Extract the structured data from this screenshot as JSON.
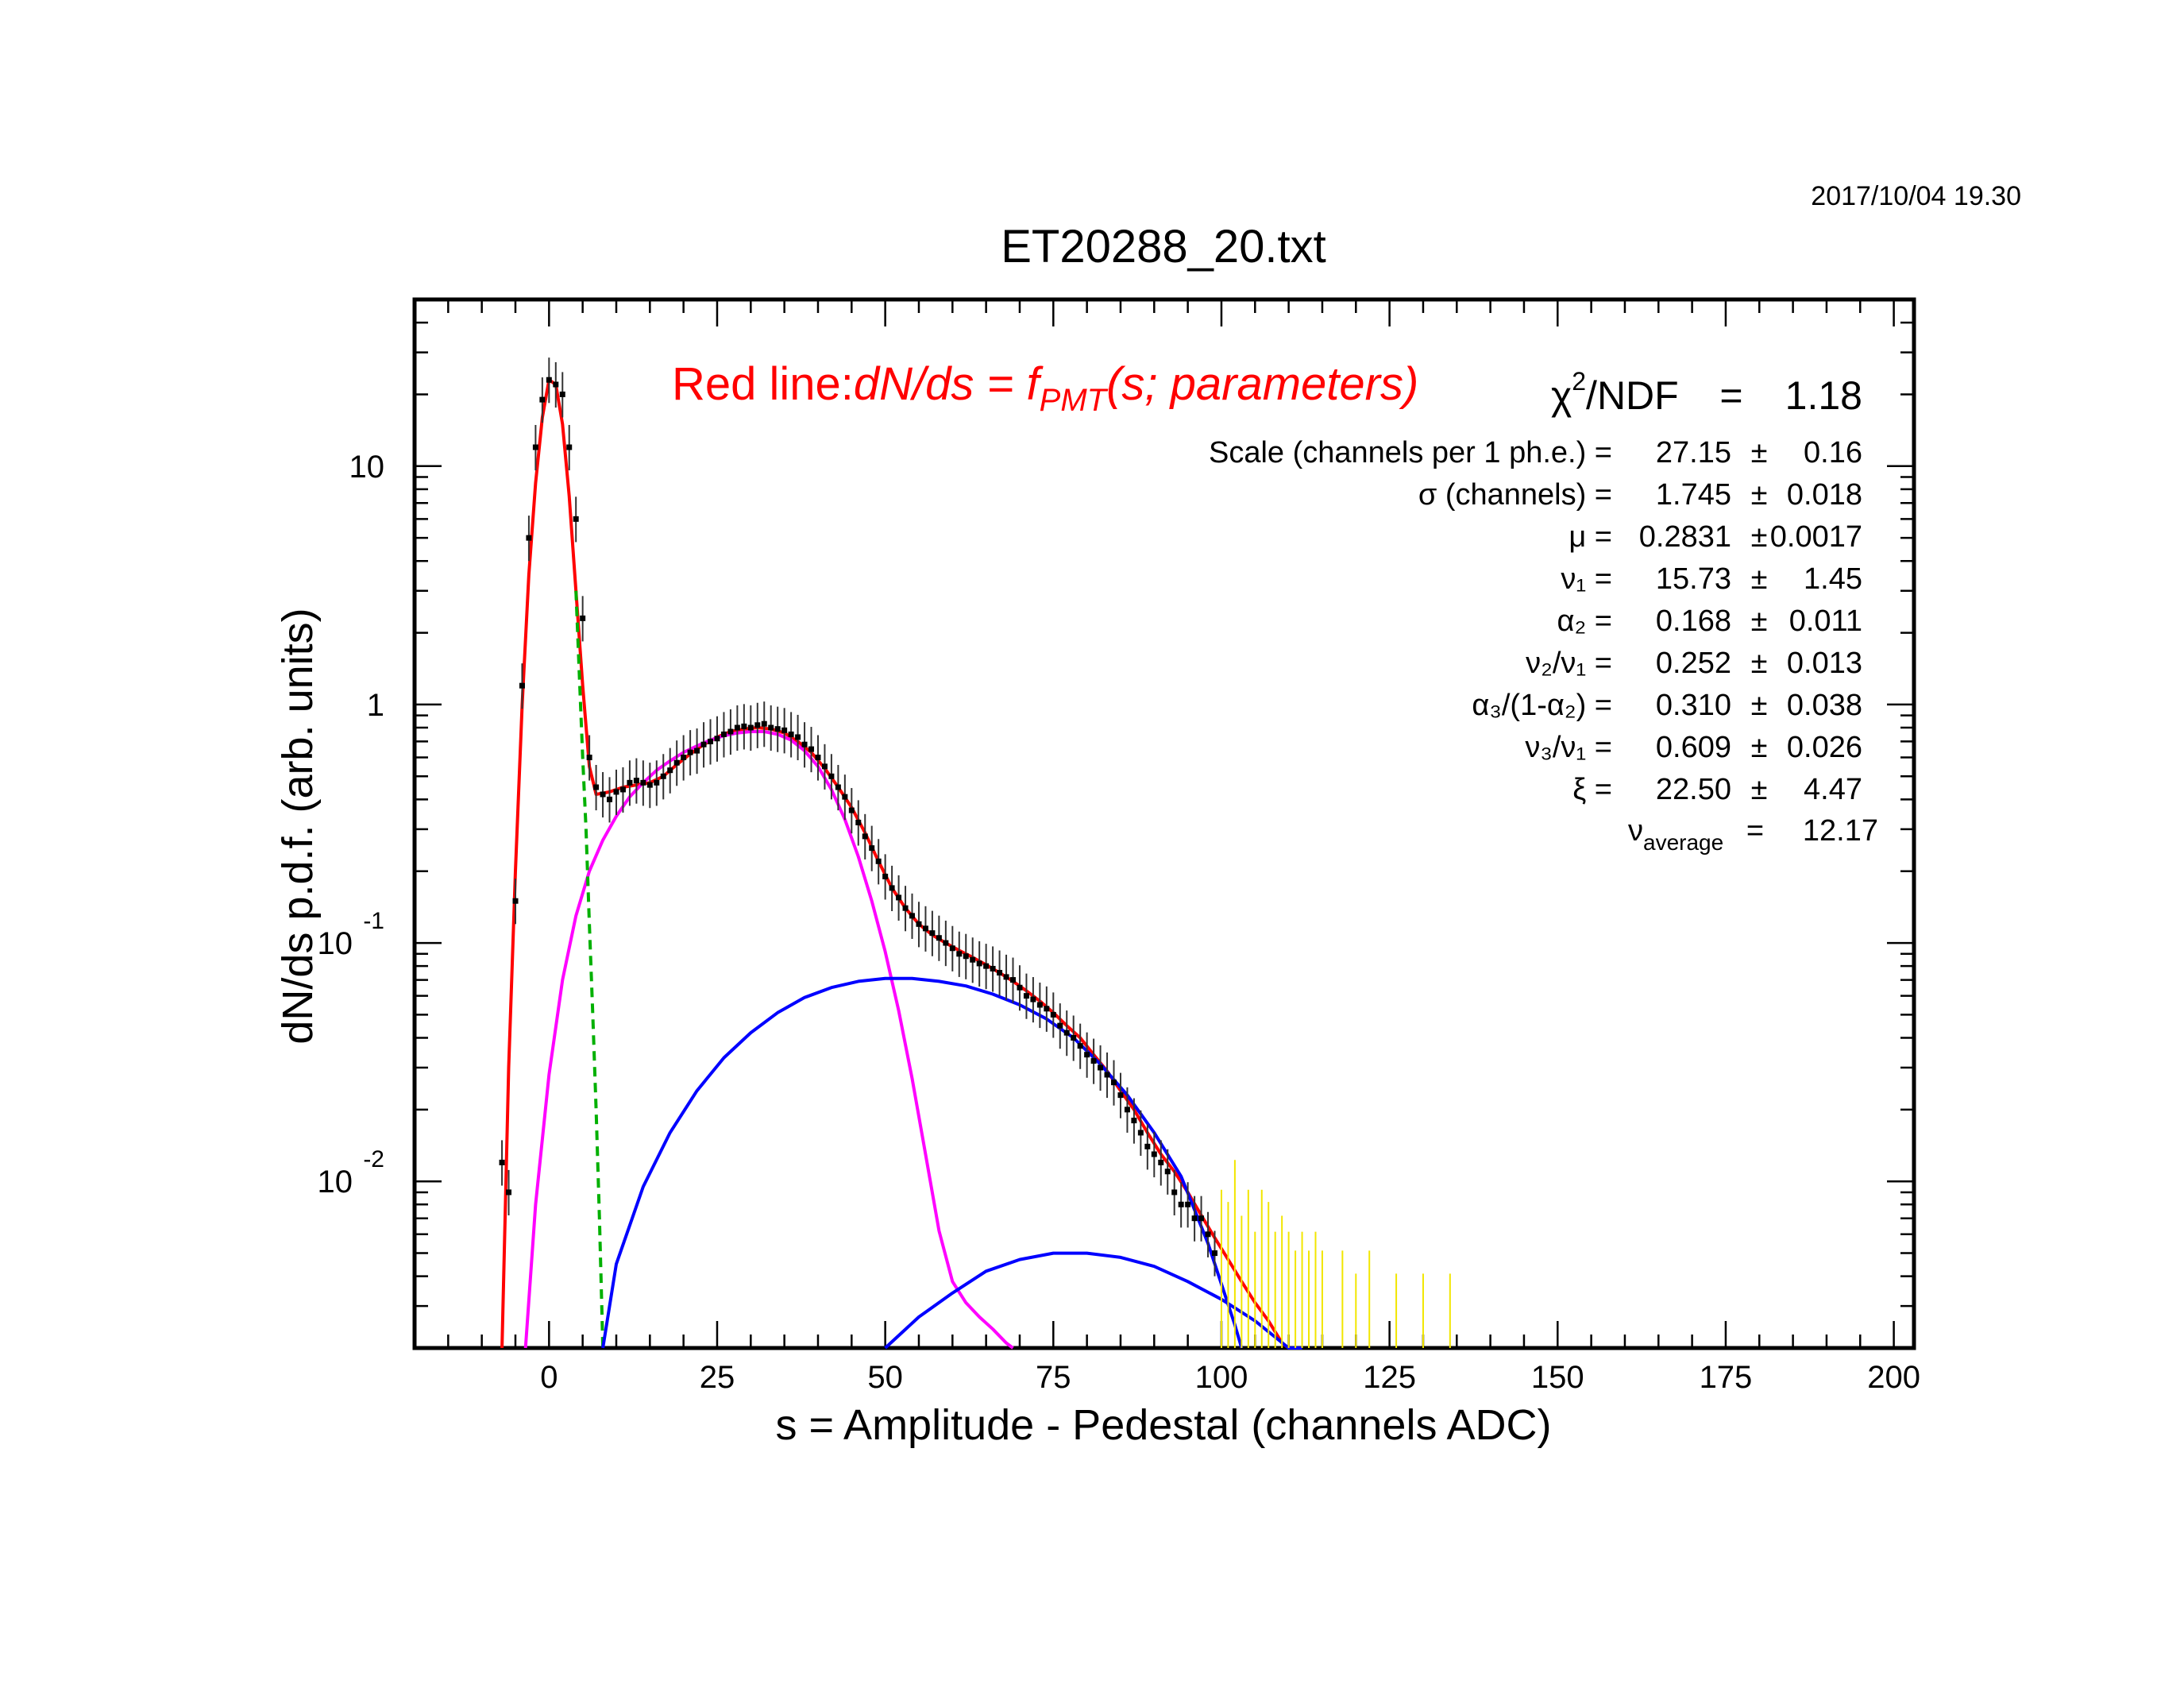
{
  "timestamp": "2017/10/04   19.30",
  "chart_data": {
    "type": "scatter",
    "title": "ET20288_20.txt",
    "xlabel": "s = Amplitude - Pedestal (channels ADC)",
    "ylabel": "dN/ds p.d.f. (arb. units)",
    "xlim": [
      -20,
      203
    ],
    "ylim": [
      0.002,
      50
    ],
    "y_scale": "log",
    "x_ticks": [
      0,
      25,
      50,
      75,
      100,
      125,
      150,
      175,
      200
    ],
    "x_tick_labels": [
      "0",
      "25",
      "50",
      "75",
      "100",
      "125",
      "150",
      "175",
      "200"
    ],
    "y_ticks": [
      {
        "value": 10,
        "base": "10",
        "exp": ""
      },
      {
        "value": 1,
        "base": "1",
        "exp": ""
      },
      {
        "value": 0.1,
        "base": "10",
        "exp": "-1"
      },
      {
        "value": 0.01,
        "base": "10",
        "exp": "-2"
      }
    ],
    "grid": false,
    "annotation": {
      "prefix": "Red line:",
      "formula_a": "dN/ds = f",
      "formula_sub": "PMT",
      "formula_b": "(s; parameters)"
    },
    "fit_results": {
      "chi2_label": "χ",
      "chi2_sup": "2",
      "chi2_rest": "/NDF",
      "chi2_eq": "=",
      "chi2_value": "1.18",
      "rows": [
        {
          "label": "Scale (channels per 1 ph.e.) =",
          "value": "27.15",
          "pm": "±",
          "err": "0.16"
        },
        {
          "label": "σ (channels) =",
          "value": "1.745",
          "pm": "±",
          "err": "0.018"
        },
        {
          "label": "μ  =",
          "value": "0.2831",
          "pm": "±",
          "err": "0.0017"
        },
        {
          "label": "ν₁ =",
          "value": "15.73",
          "pm": "±",
          "err": "1.45"
        },
        {
          "label": "α₂ =",
          "value": "0.168",
          "pm": "±",
          "err": "0.011"
        },
        {
          "label": "ν₂/ν₁ =",
          "value": "0.252",
          "pm": "±",
          "err": "0.013"
        },
        {
          "label": "α₃/(1-α₂) =",
          "value": "0.310",
          "pm": "±",
          "err": "0.038"
        },
        {
          "label": "ν₃/ν₁ =",
          "value": "0.609",
          "pm": "±",
          "err": "0.026"
        },
        {
          "label": "ξ =",
          "value": "22.50",
          "pm": "±",
          "err": "4.47"
        }
      ],
      "nu_avg_label": "ν",
      "nu_avg_sub": "average",
      "nu_avg_eq": "=",
      "nu_avg_value": "12.17"
    },
    "series": [
      {
        "name": "data",
        "color": "#000000",
        "marker": "point",
        "points": [
          [
            -7,
            0.012
          ],
          [
            -6,
            0.009
          ],
          [
            -5,
            0.15
          ],
          [
            -4,
            1.2
          ],
          [
            -3,
            5
          ],
          [
            -2,
            12
          ],
          [
            -1,
            19
          ],
          [
            0,
            23
          ],
          [
            1,
            22
          ],
          [
            2,
            20
          ],
          [
            3,
            12
          ],
          [
            4,
            6
          ],
          [
            5,
            2.3
          ],
          [
            6,
            0.6
          ],
          [
            7,
            0.45
          ],
          [
            8,
            0.42
          ],
          [
            9,
            0.4
          ],
          [
            10,
            0.43
          ],
          [
            11,
            0.44
          ],
          [
            12,
            0.47
          ],
          [
            13,
            0.48
          ],
          [
            14,
            0.47
          ],
          [
            15,
            0.46
          ],
          [
            16,
            0.47
          ],
          [
            17,
            0.5
          ],
          [
            18,
            0.53
          ],
          [
            19,
            0.57
          ],
          [
            20,
            0.6
          ],
          [
            21,
            0.63
          ],
          [
            22,
            0.64
          ],
          [
            23,
            0.68
          ],
          [
            24,
            0.7
          ],
          [
            25,
            0.72
          ],
          [
            26,
            0.75
          ],
          [
            27,
            0.77
          ],
          [
            28,
            0.8
          ],
          [
            29,
            0.81
          ],
          [
            30,
            0.8
          ],
          [
            31,
            0.82
          ],
          [
            32,
            0.83
          ],
          [
            33,
            0.8
          ],
          [
            34,
            0.79
          ],
          [
            35,
            0.78
          ],
          [
            36,
            0.75
          ],
          [
            37,
            0.73
          ],
          [
            38,
            0.68
          ],
          [
            39,
            0.65
          ],
          [
            40,
            0.6
          ],
          [
            41,
            0.55
          ],
          [
            42,
            0.5
          ],
          [
            43,
            0.45
          ],
          [
            44,
            0.41
          ],
          [
            45,
            0.36
          ],
          [
            46,
            0.32
          ],
          [
            47,
            0.28
          ],
          [
            48,
            0.25
          ],
          [
            49,
            0.22
          ],
          [
            50,
            0.19
          ],
          [
            51,
            0.17
          ],
          [
            52,
            0.155
          ],
          [
            53,
            0.14
          ],
          [
            54,
            0.13
          ],
          [
            55,
            0.12
          ],
          [
            56,
            0.115
          ],
          [
            57,
            0.11
          ],
          [
            58,
            0.105
          ],
          [
            59,
            0.1
          ],
          [
            60,
            0.095
          ],
          [
            61,
            0.09
          ],
          [
            62,
            0.088
          ],
          [
            63,
            0.085
          ],
          [
            64,
            0.082
          ],
          [
            65,
            0.08
          ],
          [
            66,
            0.078
          ],
          [
            67,
            0.075
          ],
          [
            68,
            0.072
          ],
          [
            69,
            0.07
          ],
          [
            70,
            0.065
          ],
          [
            71,
            0.06
          ],
          [
            72,
            0.058
          ],
          [
            73,
            0.055
          ],
          [
            74,
            0.053
          ],
          [
            75,
            0.05
          ],
          [
            76,
            0.045
          ],
          [
            77,
            0.042
          ],
          [
            78,
            0.04
          ],
          [
            79,
            0.037
          ],
          [
            80,
            0.034
          ],
          [
            81,
            0.032
          ],
          [
            82,
            0.03
          ],
          [
            83,
            0.028
          ],
          [
            84,
            0.026
          ],
          [
            85,
            0.023
          ],
          [
            86,
            0.02
          ],
          [
            87,
            0.018
          ],
          [
            88,
            0.016
          ],
          [
            89,
            0.014
          ],
          [
            90,
            0.013
          ],
          [
            91,
            0.012
          ],
          [
            92,
            0.011
          ],
          [
            93,
            0.009
          ],
          [
            94,
            0.008
          ],
          [
            95,
            0.008
          ],
          [
            96,
            0.007
          ],
          [
            97,
            0.007
          ],
          [
            98,
            0.006
          ],
          [
            99,
            0.005
          ]
        ]
      },
      {
        "name": "data (low statistics)",
        "color": "#f2e600",
        "marker": "errorbar",
        "points": [
          [
            100,
            0.0045
          ],
          [
            101,
            0.004
          ],
          [
            102,
            0.006
          ],
          [
            103,
            0.0035
          ],
          [
            104,
            0.0045
          ],
          [
            105,
            0.003
          ],
          [
            106,
            0.0045
          ],
          [
            107,
            0.004
          ],
          [
            108,
            0.003
          ],
          [
            109,
            0.0035
          ],
          [
            110,
            0.003
          ],
          [
            111,
            0.0025
          ],
          [
            112,
            0.003
          ],
          [
            113,
            0.0025
          ],
          [
            114,
            0.003
          ],
          [
            115,
            0.0025
          ],
          [
            118,
            0.0025
          ],
          [
            120,
            0.002
          ],
          [
            122,
            0.0025
          ],
          [
            126,
            0.002
          ],
          [
            130,
            0.002
          ],
          [
            134,
            0.002
          ]
        ]
      },
      {
        "name": "red",
        "color": "#ff0000",
        "points": [
          [
            -7,
            0.002
          ],
          [
            -6,
            0.03
          ],
          [
            -5,
            0.2
          ],
          [
            -4,
            1.0
          ],
          [
            -3,
            3.5
          ],
          [
            -2,
            8.5
          ],
          [
            -1,
            16
          ],
          [
            0,
            23
          ],
          [
            1,
            22
          ],
          [
            2,
            15
          ],
          [
            3,
            7.5
          ],
          [
            4,
            3.0
          ],
          [
            5,
            1.2
          ],
          [
            6,
            0.55
          ],
          [
            7,
            0.42
          ],
          [
            9,
            0.43
          ],
          [
            11,
            0.45
          ],
          [
            13,
            0.46
          ],
          [
            15,
            0.47
          ],
          [
            17,
            0.5
          ],
          [
            19,
            0.56
          ],
          [
            21,
            0.62
          ],
          [
            23,
            0.68
          ],
          [
            25,
            0.73
          ],
          [
            27,
            0.77
          ],
          [
            29,
            0.79
          ],
          [
            31,
            0.8
          ],
          [
            33,
            0.79
          ],
          [
            35,
            0.76
          ],
          [
            37,
            0.7
          ],
          [
            39,
            0.63
          ],
          [
            41,
            0.54
          ],
          [
            43,
            0.45
          ],
          [
            45,
            0.37
          ],
          [
            47,
            0.29
          ],
          [
            49,
            0.22
          ],
          [
            51,
            0.17
          ],
          [
            53,
            0.14
          ],
          [
            55,
            0.12
          ],
          [
            57,
            0.108
          ],
          [
            59,
            0.1
          ],
          [
            61,
            0.093
          ],
          [
            63,
            0.087
          ],
          [
            65,
            0.081
          ],
          [
            67,
            0.075
          ],
          [
            69,
            0.069
          ],
          [
            71,
            0.063
          ],
          [
            73,
            0.057
          ],
          [
            75,
            0.051
          ],
          [
            77,
            0.045
          ],
          [
            79,
            0.04
          ],
          [
            81,
            0.034
          ],
          [
            83,
            0.029
          ],
          [
            85,
            0.024
          ],
          [
            87,
            0.02
          ],
          [
            89,
            0.016
          ],
          [
            91,
            0.013
          ],
          [
            93,
            0.011
          ],
          [
            95,
            0.009
          ],
          [
            97,
            0.0072
          ],
          [
            99,
            0.0058
          ],
          [
            101,
            0.0047
          ],
          [
            103,
            0.0038
          ],
          [
            105,
            0.0031
          ],
          [
            107,
            0.0026
          ],
          [
            109,
            0.0021
          ],
          [
            110,
            0.002
          ]
        ]
      },
      {
        "name": "magenta",
        "color": "#ff00ff",
        "points": [
          [
            -3.5,
            0.002
          ],
          [
            -2,
            0.008
          ],
          [
            0,
            0.028
          ],
          [
            2,
            0.07
          ],
          [
            4,
            0.13
          ],
          [
            6,
            0.2
          ],
          [
            8,
            0.27
          ],
          [
            10,
            0.34
          ],
          [
            12,
            0.41
          ],
          [
            14,
            0.47
          ],
          [
            16,
            0.53
          ],
          [
            18,
            0.58
          ],
          [
            20,
            0.63
          ],
          [
            22,
            0.67
          ],
          [
            24,
            0.71
          ],
          [
            26,
            0.74
          ],
          [
            28,
            0.76
          ],
          [
            30,
            0.77
          ],
          [
            32,
            0.77
          ],
          [
            34,
            0.75
          ],
          [
            36,
            0.71
          ],
          [
            38,
            0.64
          ],
          [
            40,
            0.55
          ],
          [
            42,
            0.44
          ],
          [
            44,
            0.33
          ],
          [
            46,
            0.23
          ],
          [
            48,
            0.15
          ],
          [
            50,
            0.092
          ],
          [
            52,
            0.052
          ],
          [
            54,
            0.027
          ],
          [
            56,
            0.013
          ],
          [
            58,
            0.0062
          ],
          [
            60,
            0.0038
          ],
          [
            62,
            0.0031
          ],
          [
            64,
            0.0027
          ],
          [
            66,
            0.0024
          ],
          [
            68,
            0.0021
          ],
          [
            69,
            0.002
          ]
        ]
      },
      {
        "name": "green",
        "color": "#00b000",
        "dashed": true,
        "points": [
          [
            4,
            3.0
          ],
          [
            5,
            0.6
          ],
          [
            5.5,
            0.3
          ],
          [
            6,
            0.12
          ],
          [
            6.5,
            0.05
          ],
          [
            7,
            0.02
          ],
          [
            7.5,
            0.007
          ],
          [
            8,
            0.002
          ]
        ]
      },
      {
        "name": "blue1",
        "color": "#0000ff",
        "points": [
          [
            8,
            0.002
          ],
          [
            10,
            0.0045
          ],
          [
            14,
            0.0095
          ],
          [
            18,
            0.016
          ],
          [
            22,
            0.024
          ],
          [
            26,
            0.033
          ],
          [
            30,
            0.042
          ],
          [
            34,
            0.051
          ],
          [
            38,
            0.059
          ],
          [
            42,
            0.065
          ],
          [
            46,
            0.069
          ],
          [
            50,
            0.071
          ],
          [
            54,
            0.071
          ],
          [
            58,
            0.069
          ],
          [
            62,
            0.066
          ],
          [
            66,
            0.061
          ],
          [
            70,
            0.055
          ],
          [
            74,
            0.048
          ],
          [
            78,
            0.04
          ],
          [
            82,
            0.031
          ],
          [
            86,
            0.023
          ],
          [
            90,
            0.016
          ],
          [
            94,
            0.0105
          ],
          [
            98,
            0.0055
          ],
          [
            102,
            0.0025
          ],
          [
            103,
            0.002
          ]
        ]
      },
      {
        "name": "blue2",
        "color": "#0000ff",
        "points": [
          [
            50,
            0.002
          ],
          [
            55,
            0.0027
          ],
          [
            60,
            0.0034
          ],
          [
            65,
            0.0042
          ],
          [
            70,
            0.0047
          ],
          [
            75,
            0.005
          ],
          [
            80,
            0.005
          ],
          [
            85,
            0.0048
          ],
          [
            90,
            0.0044
          ],
          [
            95,
            0.0038
          ],
          [
            100,
            0.0032
          ],
          [
            105,
            0.0026
          ],
          [
            110,
            0.002
          ],
          [
            112,
            0.002
          ]
        ]
      }
    ]
  }
}
